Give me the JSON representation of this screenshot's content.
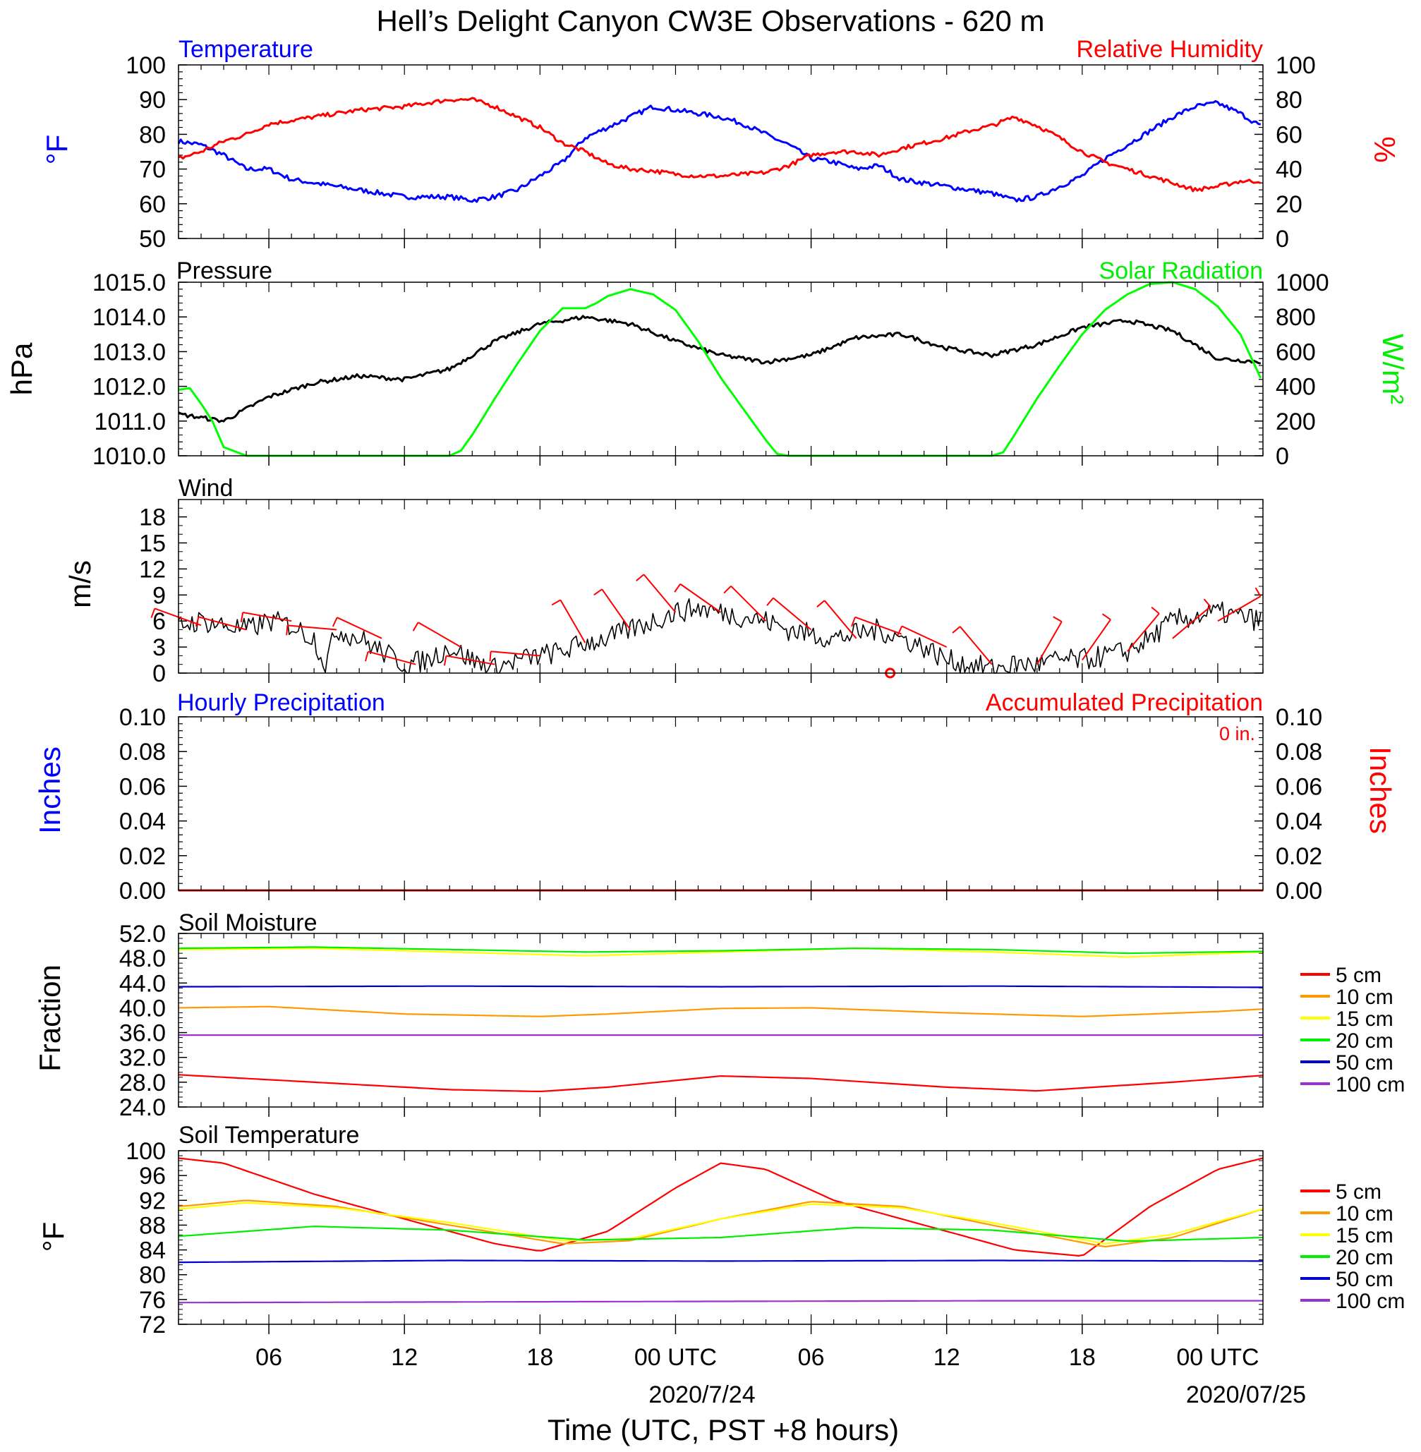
{
  "title": "Hell’s Delight Canyon CW3E Observations - 620 m",
  "xaxis": {
    "title": "Time (UTC, PST +8 hours)",
    "tick_labels": [
      "06",
      "12",
      "18",
      "00 UTC",
      "06",
      "12",
      "18",
      "00 UTC"
    ],
    "date_labels": [
      "2020/7/24",
      "2020/07/25"
    ]
  },
  "colors": {
    "temperature": "#0000ff",
    "humidity": "#ff0000",
    "pressure": "#000000",
    "solar": "#00ff00",
    "wind": "#000000",
    "barbs": "#ff0000",
    "precip_hourly": "#0000ff",
    "precip_accum": "#ff0000",
    "d5": "#ff0000",
    "d10": "#ff9900",
    "d15": "#ffff00",
    "d20": "#00ee00",
    "d50": "#0000cc",
    "d100": "#9933cc"
  },
  "panels": {
    "temp_rh": {
      "left_title": "Temperature",
      "right_title": "Relative Humidity",
      "left_unit": "°F",
      "right_unit": "%",
      "left_ticks": [
        "100",
        "90",
        "80",
        "70",
        "60",
        "50"
      ],
      "right_ticks": [
        "100",
        "80",
        "60",
        "40",
        "20",
        "0"
      ]
    },
    "pressure_solar": {
      "left_title": "Pressure",
      "right_title": "Solar Radiation",
      "left_unit": "hPa",
      "right_unit": "W/m²",
      "left_ticks": [
        "1015.0",
        "1014.0",
        "1013.0",
        "1012.0",
        "1011.0",
        "1010.0"
      ],
      "right_ticks": [
        "1000",
        "800",
        "600",
        "400",
        "200",
        "0"
      ]
    },
    "wind": {
      "left_title": "Wind",
      "left_unit": "m/s",
      "left_ticks": [
        "18",
        "15",
        "12",
        "9",
        "6",
        "3",
        "0"
      ]
    },
    "precip": {
      "left_title": "Hourly Precipitation",
      "right_title": "Accumulated Precipitation",
      "left_unit": "Inches",
      "right_unit": "Inches",
      "accum_label": "0 in.",
      "left_ticks": [
        "0.10",
        "0.08",
        "0.06",
        "0.04",
        "0.02",
        "0.00"
      ],
      "right_ticks": [
        "0.10",
        "0.08",
        "0.06",
        "0.04",
        "0.02",
        "0.00"
      ]
    },
    "soil_moisture": {
      "left_title": "Soil Moisture",
      "left_unit": "Fraction",
      "left_ticks": [
        "52.0",
        "48.0",
        "44.0",
        "40.0",
        "36.0",
        "32.0",
        "28.0",
        "24.0"
      ],
      "legend": [
        "5 cm",
        "10 cm",
        "15 cm",
        "20 cm",
        "50 cm",
        "100 cm"
      ]
    },
    "soil_temp": {
      "left_title": "Soil Temperature",
      "left_unit": "°F",
      "left_ticks": [
        "100",
        "96",
        "92",
        "88",
        "84",
        "80",
        "76",
        "72"
      ],
      "legend": [
        "5 cm",
        "10 cm",
        "15 cm",
        "20 cm",
        "50 cm",
        "100 cm"
      ]
    }
  },
  "chart_data": [
    {
      "type": "line",
      "panel": "temp_rh",
      "x_unit": "hours since 2020-07-23 02 UTC",
      "xlim": [
        0,
        48
      ],
      "series": [
        {
          "name": "Temperature",
          "axis": "left",
          "ylim": [
            50,
            100
          ],
          "x": [
            0,
            1,
            2,
            3,
            4,
            5,
            6,
            8,
            10,
            12,
            13,
            14,
            15,
            16,
            17,
            18,
            19,
            20,
            21,
            22,
            23,
            24,
            25,
            26,
            27,
            28,
            29,
            30,
            31,
            32,
            34,
            36,
            37,
            38,
            39,
            40,
            41,
            42,
            43,
            44,
            45,
            46,
            47,
            48
          ],
          "y": [
            78,
            77,
            74,
            70,
            70,
            67,
            66,
            64,
            62,
            62,
            61,
            62,
            64,
            68,
            72,
            79,
            82,
            85,
            88,
            87,
            86,
            85,
            83,
            80,
            77,
            73,
            72,
            70,
            71,
            67,
            65,
            63,
            61,
            62,
            65,
            68,
            73,
            77,
            81,
            85,
            88,
            89,
            86,
            82
          ]
        },
        {
          "name": "Relative Humidity",
          "axis": "right",
          "ylim": [
            0,
            100
          ],
          "x": [
            0,
            1,
            2,
            3,
            4,
            6,
            8,
            10,
            11,
            12,
            13,
            14,
            15,
            16,
            17,
            18,
            19,
            20,
            21,
            22,
            23,
            24,
            25,
            26,
            27,
            28,
            29,
            30,
            31,
            32,
            33,
            34,
            35,
            36,
            37,
            38,
            39,
            40,
            41,
            42,
            43,
            44,
            45,
            46,
            47,
            48
          ],
          "y": [
            46,
            50,
            56,
            60,
            66,
            70,
            74,
            76,
            78,
            80,
            80,
            76,
            70,
            64,
            55,
            50,
            43,
            40,
            39,
            37,
            36,
            36,
            37,
            38,
            42,
            48,
            50,
            50,
            48,
            52,
            55,
            58,
            62,
            65,
            70,
            65,
            58,
            50,
            44,
            40,
            36,
            32,
            28,
            30,
            33,
            33
          ]
        }
      ]
    },
    {
      "type": "line",
      "panel": "pressure_solar",
      "x_unit": "hours since 2020-07-23 02 UTC",
      "xlim": [
        0,
        48
      ],
      "series": [
        {
          "name": "Pressure",
          "axis": "left",
          "ylim": [
            1010.0,
            1015.0
          ],
          "x": [
            0,
            1,
            2,
            4,
            6,
            8,
            10,
            12,
            14,
            16,
            18,
            20,
            22,
            24,
            26,
            28,
            30,
            32,
            34,
            36,
            38,
            40,
            42,
            44,
            46,
            48
          ],
          "y": [
            1011.2,
            1011.1,
            1011.0,
            1011.7,
            1012.1,
            1012.3,
            1012.2,
            1012.5,
            1013.3,
            1013.8,
            1014.0,
            1013.8,
            1013.3,
            1012.9,
            1012.7,
            1012.9,
            1013.4,
            1013.5,
            1013.1,
            1012.9,
            1013.2,
            1013.7,
            1013.9,
            1013.6,
            1012.8,
            1012.7
          ]
        },
        {
          "name": "Solar Radiation",
          "axis": "right",
          "ylim": [
            0,
            1000
          ],
          "x": [
            0,
            0.5,
            1,
            1.5,
            2,
            3,
            12,
            12.5,
            13,
            14,
            15,
            16,
            17,
            18,
            18.5,
            19,
            20,
            21,
            22,
            23,
            24,
            25,
            26,
            26.5,
            27,
            36,
            36.5,
            37,
            38,
            39,
            40,
            41,
            42,
            43,
            44,
            45,
            46,
            47,
            48
          ],
          "y": [
            380,
            390,
            300,
            200,
            50,
            0,
            0,
            30,
            120,
            330,
            530,
            720,
            850,
            850,
            880,
            920,
            960,
            930,
            840,
            660,
            450,
            270,
            90,
            10,
            0,
            0,
            20,
            120,
            330,
            520,
            700,
            840,
            930,
            990,
            1000,
            960,
            860,
            700,
            420
          ]
        }
      ]
    },
    {
      "type": "line",
      "panel": "wind",
      "x_unit": "hours since 2020-07-23 02 UTC",
      "xlim": [
        0,
        48
      ],
      "ylim": [
        0,
        20
      ],
      "series": [
        {
          "name": "Wind Speed",
          "x": [
            0,
            1,
            2,
            3,
            4,
            5,
            6,
            6.5,
            7,
            8,
            9,
            10,
            11,
            12,
            13,
            14,
            15,
            16,
            17,
            18,
            19,
            20,
            21,
            22,
            23,
            24,
            25,
            26,
            27,
            28,
            29,
            30,
            31,
            32,
            33,
            34,
            35,
            36,
            37,
            38,
            39,
            40,
            41,
            42,
            43,
            44,
            45,
            46,
            47,
            48
          ],
          "y": [
            5.5,
            6,
            5.5,
            5,
            6,
            5.5,
            4,
            1,
            5,
            4,
            2.5,
            1,
            1.5,
            3,
            1.5,
            0.5,
            1.5,
            2,
            2.5,
            3.5,
            4,
            5,
            6,
            7,
            7.5,
            7,
            6.5,
            6,
            5,
            4.5,
            4,
            4.5,
            5,
            4,
            3,
            1.5,
            1,
            0.5,
            1,
            1,
            1.5,
            1.5,
            2,
            2.5,
            4,
            6,
            6.5,
            7,
            6.5,
            6
          ]
        }
      ]
    },
    {
      "type": "line",
      "panel": "precip",
      "x_unit": "hours since 2020-07-23 02 UTC",
      "xlim": [
        0,
        48
      ],
      "ylim": [
        0,
        0.1
      ],
      "series": [
        {
          "name": "Hourly Precipitation",
          "x": [
            0,
            48
          ],
          "y": [
            0,
            0
          ]
        },
        {
          "name": "Accumulated Precipitation",
          "x": [
            0,
            48
          ],
          "y": [
            0,
            0
          ]
        }
      ]
    },
    {
      "type": "line",
      "panel": "soil_moisture",
      "x_unit": "hours since 2020-07-23 02 UTC",
      "xlim": [
        0,
        48
      ],
      "ylim": [
        24,
        52
      ],
      "series": [
        {
          "name": "5 cm",
          "x": [
            0,
            6,
            12,
            16,
            19,
            24,
            28,
            34,
            38,
            44,
            48
          ],
          "y": [
            29.2,
            28,
            26.8,
            26.5,
            27.2,
            29,
            28.6,
            27.2,
            26.6,
            28,
            29.1
          ]
        },
        {
          "name": "10 cm",
          "x": [
            0,
            4,
            10,
            16,
            19,
            24,
            28,
            34,
            40,
            46,
            48
          ],
          "y": [
            40,
            40.2,
            39,
            38.6,
            39,
            39.9,
            40,
            39.2,
            38.6,
            39.4,
            39.8
          ]
        },
        {
          "name": "15 cm",
          "x": [
            0,
            6,
            12,
            18,
            24,
            30,
            36,
            42,
            48
          ],
          "y": [
            49.4,
            49.6,
            49,
            48.4,
            49,
            49.6,
            49,
            48.2,
            49
          ]
        },
        {
          "name": "20 cm",
          "x": [
            0,
            6,
            12,
            18,
            24,
            30,
            36,
            42,
            48
          ],
          "y": [
            49.6,
            49.8,
            49.4,
            49,
            49.2,
            49.6,
            49.4,
            48.8,
            49.1
          ]
        },
        {
          "name": "50 cm",
          "x": [
            0,
            12,
            24,
            36,
            48
          ],
          "y": [
            43.4,
            43.5,
            43.4,
            43.5,
            43.3
          ]
        },
        {
          "name": "100 cm",
          "x": [
            0,
            12,
            24,
            36,
            48
          ],
          "y": [
            35.6,
            35.6,
            35.6,
            35.6,
            35.6
          ]
        }
      ]
    },
    {
      "type": "line",
      "panel": "soil_temp",
      "x_unit": "hours since 2020-07-23 02 UTC",
      "xlim": [
        0,
        48
      ],
      "ylim": [
        72,
        100
      ],
      "series": [
        {
          "name": "5 cm",
          "x": [
            0,
            2,
            6,
            10,
            14,
            16,
            19,
            22,
            24,
            26,
            29,
            33,
            37,
            40,
            43,
            46,
            48
          ],
          "y": [
            98.8,
            98,
            93,
            89,
            85,
            83.8,
            87,
            94,
            98,
            97,
            92,
            88,
            84,
            83,
            91,
            97,
            98.8
          ]
        },
        {
          "name": "10 cm",
          "x": [
            0,
            3,
            7,
            12,
            17,
            20,
            24,
            28,
            32,
            36,
            41,
            44,
            48
          ],
          "y": [
            91,
            92,
            91,
            88,
            85,
            85.5,
            89,
            91.8,
            91,
            88,
            84.5,
            86,
            90.6
          ]
        },
        {
          "name": "15 cm",
          "x": [
            0,
            3,
            7,
            12,
            17,
            20,
            24,
            28,
            32,
            36,
            41,
            44,
            48
          ],
          "y": [
            90.6,
            91.6,
            90.8,
            88.4,
            85.5,
            85.8,
            89,
            91.4,
            90.8,
            88.4,
            85,
            86.5,
            90.6
          ]
        },
        {
          "name": "20 cm",
          "x": [
            0,
            6,
            12,
            18,
            24,
            30,
            36,
            42,
            48
          ],
          "y": [
            86.2,
            87.8,
            87.2,
            85.6,
            86,
            87.6,
            87.2,
            85.4,
            86
          ]
        },
        {
          "name": "50 cm",
          "x": [
            0,
            12,
            24,
            36,
            48
          ],
          "y": [
            82,
            82.3,
            82.2,
            82.3,
            82.2
          ]
        },
        {
          "name": "100 cm",
          "x": [
            0,
            12,
            24,
            36,
            48
          ],
          "y": [
            75.5,
            75.6,
            75.7,
            75.8,
            75.8
          ]
        }
      ]
    },
    {
      "type": "barbs",
      "panel": "wind",
      "x_unit": "hours since 2020-07-23 02 UTC",
      "x": [
        1,
        3,
        5,
        7,
        9,
        10.5,
        12.5,
        14,
        16,
        18,
        20,
        22,
        24,
        26,
        28,
        30,
        32,
        34,
        36,
        38,
        40,
        42,
        44,
        46
      ],
      "speed": [
        5.5,
        5,
        6,
        5,
        4,
        1,
        3,
        1,
        2,
        3.5,
        5,
        7,
        7,
        6,
        5,
        4,
        4.5,
        3,
        1,
        1,
        1.5,
        2.5,
        4,
        6
      ],
      "label": "wind barbs"
    }
  ]
}
